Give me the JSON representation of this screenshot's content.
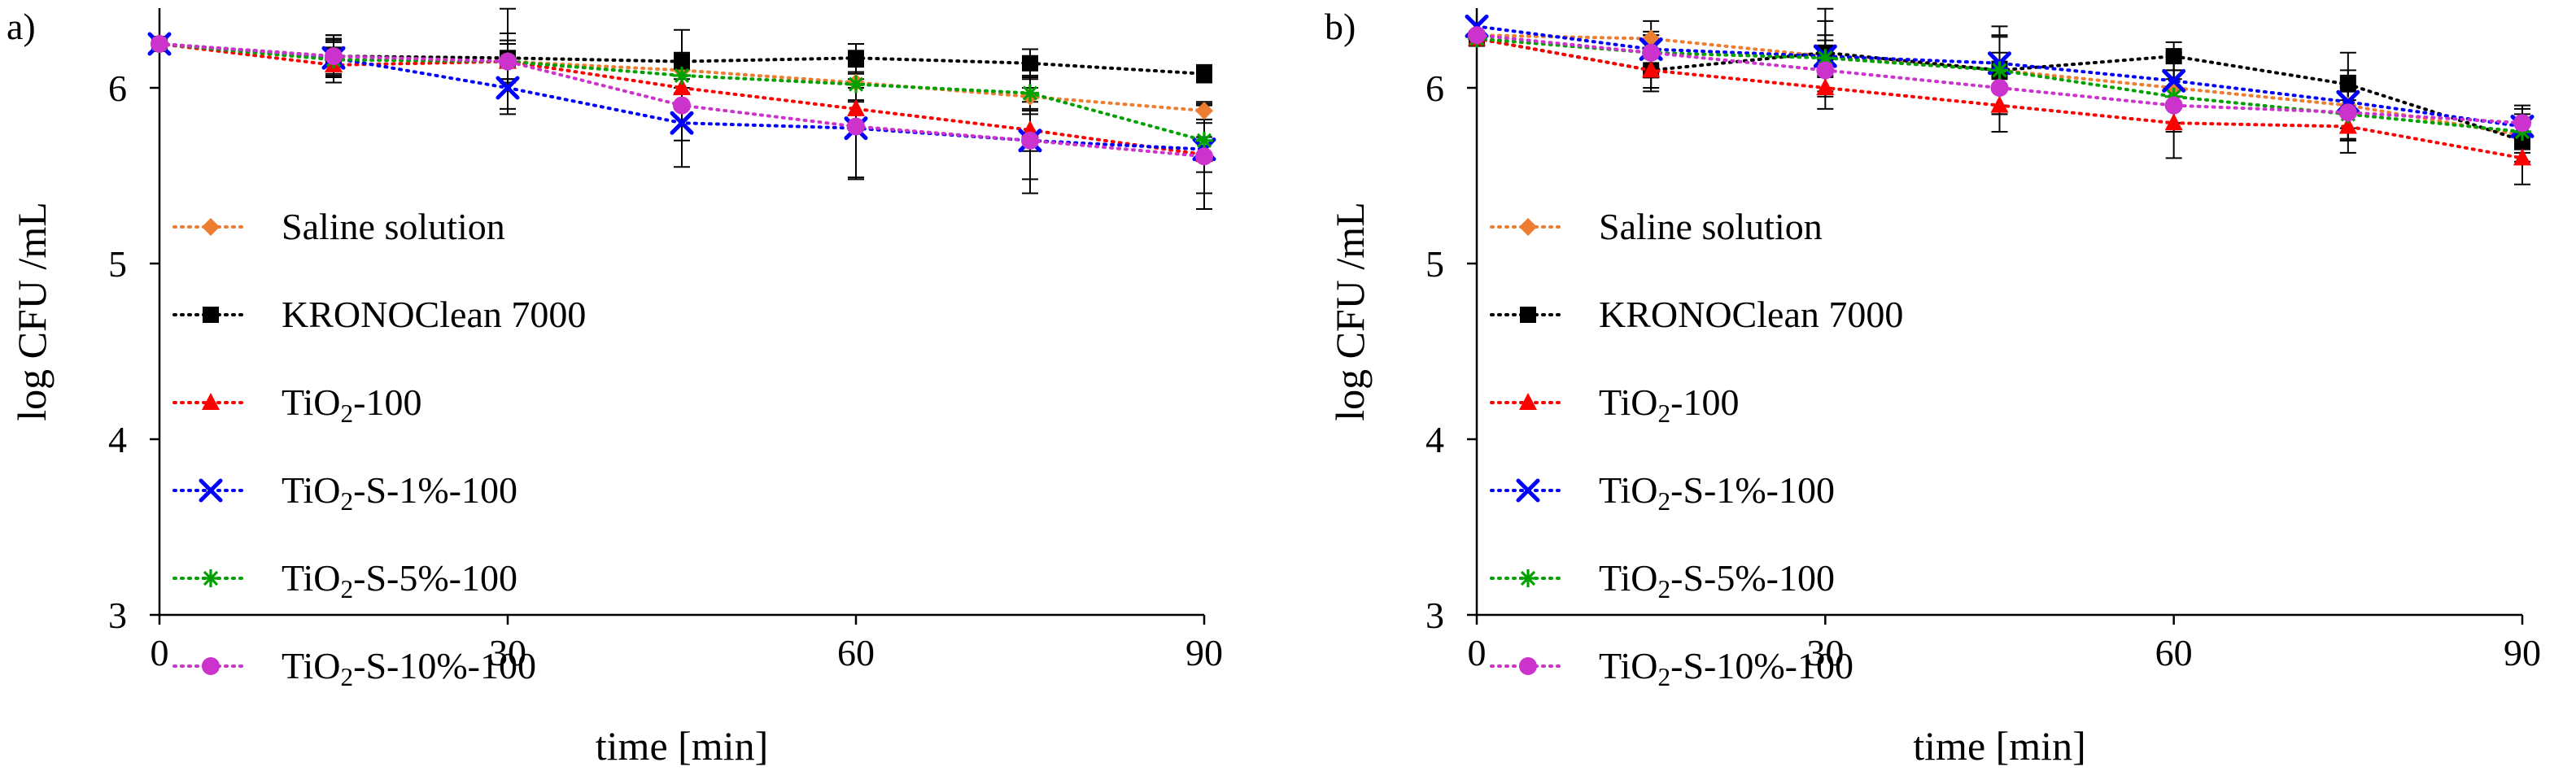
{
  "chart_data": [
    {
      "panel_label": "a)",
      "type": "line",
      "xlabel": "time [min]",
      "ylabel": "log CFU /mL",
      "xlim": [
        0,
        90
      ],
      "ylim": [
        3,
        6.5
      ],
      "xticks": [
        "0",
        "30",
        "60",
        "90"
      ],
      "yticks": [
        "3",
        "4",
        "5",
        "6"
      ],
      "grid": false,
      "legend_position": "left",
      "x": [
        0,
        15,
        30,
        45,
        60,
        75,
        90
      ],
      "series": [
        {
          "name": "Saline solution",
          "color": "#ED7D31",
          "marker": "diamond",
          "values": [
            6.25,
            6.18,
            6.15,
            6.1,
            6.03,
            5.95,
            5.87
          ],
          "errors": [
            0,
            0.1,
            0.12,
            0.1,
            0.1,
            0.1,
            0.05
          ]
        },
        {
          "name": "KRONOClean 7000",
          "color": "#000000",
          "marker": "square",
          "values": [
            6.25,
            6.18,
            6.17,
            6.15,
            6.17,
            6.14,
            6.08
          ],
          "errors": [
            0,
            0.12,
            0.14,
            0.18,
            0.08,
            0.08,
            0.05
          ]
        },
        {
          "name": "TiO2-100",
          "color": "#FF0000",
          "marker": "triangle",
          "values": [
            6.25,
            6.13,
            6.15,
            6.0,
            5.88,
            5.76,
            5.62
          ],
          "errors": [
            0,
            0.1,
            0.1,
            0.12,
            0.12,
            0.12,
            0.1
          ]
        },
        {
          "name": "TiO2-S-1%-100",
          "color": "#0000FF",
          "marker": "x",
          "values": [
            6.25,
            6.17,
            6.0,
            5.8,
            5.77,
            5.7,
            5.65
          ],
          "errors": [
            0,
            0.1,
            0.12,
            0.25,
            0.28,
            0.3,
            0.25
          ]
        },
        {
          "name": "TiO2-S-5%-100",
          "color": "#00A000",
          "marker": "asterisk",
          "values": [
            6.25,
            6.16,
            6.15,
            6.07,
            6.02,
            5.97,
            5.7
          ],
          "errors": [
            0,
            0.1,
            0.1,
            0.1,
            0.1,
            0.1,
            0.1
          ]
        },
        {
          "name": "TiO2-S-10%-100",
          "color": "#CC33CC",
          "marker": "circle",
          "values": [
            6.25,
            6.18,
            6.15,
            5.9,
            5.78,
            5.7,
            5.61
          ],
          "errors": [
            0,
            0.12,
            0.3,
            0.2,
            0.3,
            0.22,
            0.3
          ]
        }
      ]
    },
    {
      "panel_label": "b)",
      "type": "line",
      "xlabel": "time [min]",
      "ylabel": "log CFU /mL",
      "xlim": [
        0,
        90
      ],
      "ylim": [
        3,
        6.5
      ],
      "xticks": [
        "0",
        "30",
        "60",
        "90"
      ],
      "yticks": [
        "3",
        "4",
        "5",
        "6"
      ],
      "grid": false,
      "legend_position": "left",
      "x": [
        0,
        15,
        30,
        45,
        60,
        75,
        90
      ],
      "series": [
        {
          "name": "Saline solution",
          "color": "#ED7D31",
          "marker": "diamond",
          "values": [
            6.3,
            6.28,
            6.18,
            6.1,
            6.0,
            5.9,
            5.73
          ],
          "errors": [
            0,
            0.1,
            0.2,
            0.2,
            0.2,
            0.2,
            0.1
          ]
        },
        {
          "name": "KRONOClean 7000",
          "color": "#000000",
          "marker": "square",
          "values": [
            6.28,
            6.1,
            6.2,
            6.1,
            6.18,
            6.02,
            5.7
          ],
          "errors": [
            0,
            0.12,
            0.25,
            0.25,
            0.08,
            0.18,
            0.12
          ]
        },
        {
          "name": "TiO2-100",
          "color": "#FF0000",
          "marker": "triangle",
          "values": [
            6.28,
            6.1,
            6.0,
            5.9,
            5.8,
            5.78,
            5.6
          ],
          "errors": [
            0,
            0.1,
            0.12,
            0.15,
            0.2,
            0.15,
            0.15
          ]
        },
        {
          "name": "TiO2-S-1%-100",
          "color": "#0000FF",
          "marker": "x",
          "values": [
            6.35,
            6.22,
            6.18,
            6.14,
            6.04,
            5.92,
            5.78
          ],
          "errors": [
            0,
            0.1,
            0.12,
            0.15,
            0.15,
            0.15,
            0.1
          ]
        },
        {
          "name": "TiO2-S-5%-100",
          "color": "#00A000",
          "marker": "asterisk",
          "values": [
            6.28,
            6.2,
            6.17,
            6.1,
            5.95,
            5.85,
            5.75
          ],
          "errors": [
            0,
            0.1,
            0.1,
            0.1,
            0.15,
            0.15,
            0.1
          ]
        },
        {
          "name": "TiO2-S-10%-100",
          "color": "#CC33CC",
          "marker": "circle",
          "values": [
            6.3,
            6.2,
            6.1,
            6.0,
            5.9,
            5.86,
            5.8
          ],
          "errors": [
            0,
            0.1,
            0.1,
            0.15,
            0.15,
            0.15,
            0.1
          ]
        }
      ]
    }
  ]
}
